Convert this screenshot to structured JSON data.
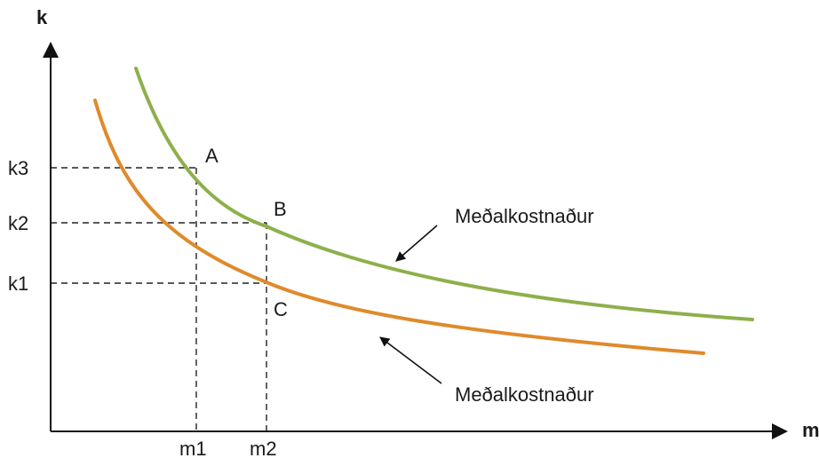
{
  "axes": {
    "y_label": "k",
    "x_label": "m"
  },
  "y_ticks": [
    "k3",
    "k2",
    "k1"
  ],
  "x_ticks": [
    "m1",
    "m2"
  ],
  "points": [
    "A",
    "B",
    "C"
  ],
  "curve_labels": [
    "Meðalkostnaður",
    "Meðalkostnaður"
  ],
  "colors": {
    "upper_curve": "#8db04b",
    "lower_curve": "#df8a2c",
    "axis": "#111111"
  }
}
